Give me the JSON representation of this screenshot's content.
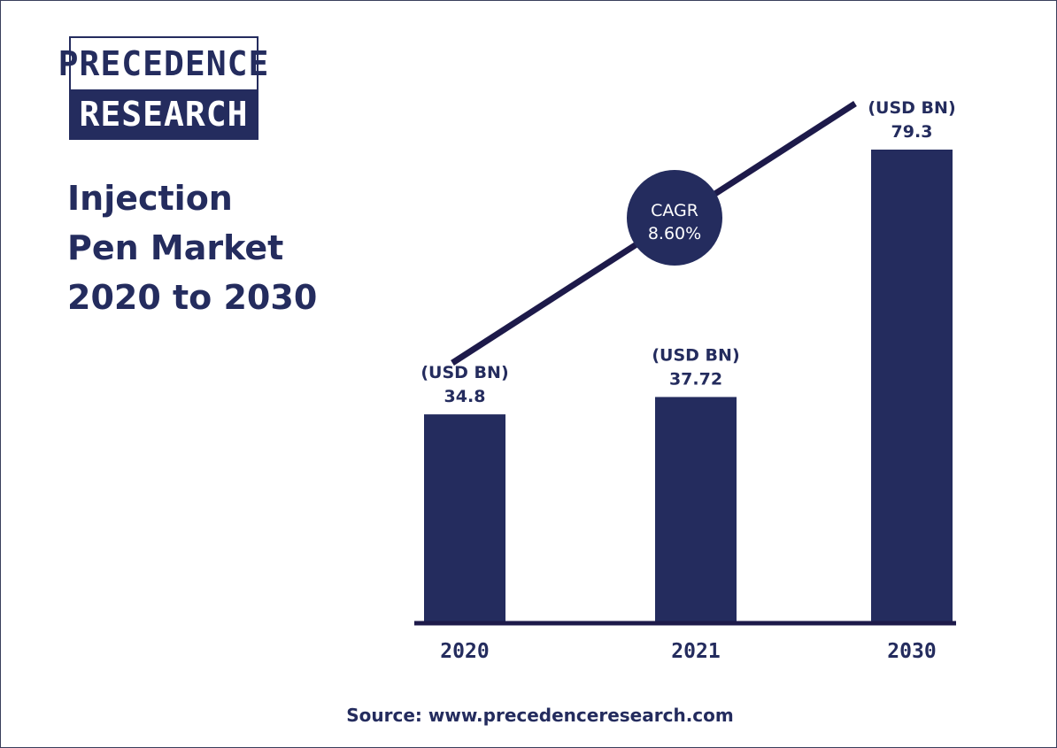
{
  "logo": {
    "line1": "PRECEDENCE",
    "line2": "RESEARCH"
  },
  "title": {
    "line1": "Injection",
    "line2": "Pen Market",
    "line3": "2020 to 2030"
  },
  "cagr": {
    "label": "CAGR",
    "value": "8.60%"
  },
  "source": "Source: www.precedenceresearch.com",
  "colors": {
    "bar": "#242c5e",
    "text": "#242c5e",
    "trend_line": "#1d1a4a"
  },
  "chart_data": {
    "type": "bar",
    "categories": [
      "2020",
      "2021",
      "2030"
    ],
    "values": [
      34.8,
      37.72,
      79.3
    ],
    "value_labels": [
      "34.8",
      "37.72",
      "79.3"
    ],
    "unit_label": "(USD BN)",
    "title": "Injection Pen Market 2020 to 2030",
    "xlabel": "",
    "ylabel": "",
    "ylim": [
      0,
      79.3
    ],
    "grid": false,
    "legend": "none",
    "annotations": [
      "CAGR 8.60%"
    ]
  }
}
